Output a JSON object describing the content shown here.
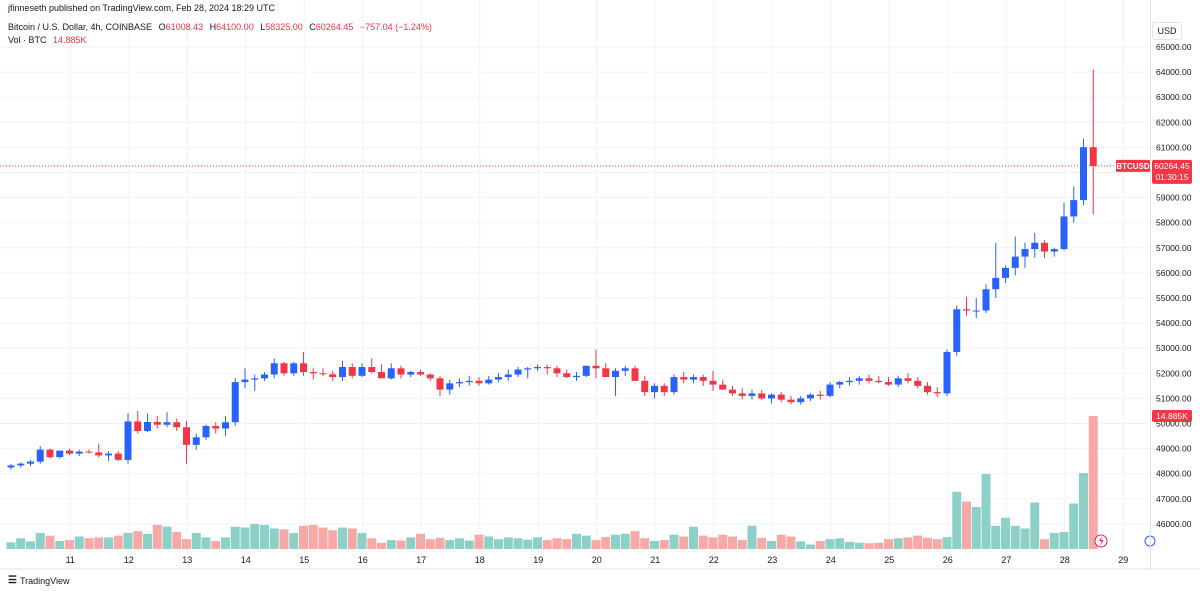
{
  "header": {
    "author": "jfinneseth published on TradingView.com, Feb 28, 2024 18:29 UTC",
    "symbol": "Bitcoin / U.S. Dollar, 4h, COINBASE",
    "open_label": "O",
    "open": "61008.43",
    "high_label": "H",
    "high": "64100.00",
    "low_label": "L",
    "low": "58325.00",
    "close_label": "C",
    "close": "60264.45",
    "change": "−757.04 (−1.24%)",
    "vol_label": "Vol · BTC",
    "vol_value": "14.885K"
  },
  "currency": "USD",
  "branding": "TradingView",
  "colors": {
    "up": "#2962ff",
    "down": "#f23645",
    "vol_up": "#8dd0c8",
    "vol_down": "#f7a9a7",
    "grid": "#f0f3fa"
  },
  "chart_data": {
    "type": "candlestick",
    "title": "Bitcoin / U.S. Dollar, 4h, COINBASE",
    "ylim": [
      45500,
      65500
    ],
    "y_ticks": [
      46000,
      47000,
      48000,
      49000,
      50000,
      51000,
      52000,
      53000,
      54000,
      55000,
      56000,
      57000,
      58000,
      59000,
      60000,
      61000,
      62000,
      63000,
      64000,
      65000
    ],
    "y_tick_labels": [
      "46000.00",
      "47000.00",
      "48000.00",
      "49000.00",
      "50000.00",
      "51000.00",
      "52000.00",
      "53000.00",
      "54000.00",
      "55000.00",
      "56000.00",
      "57000.00",
      "58000.00",
      "59000.00",
      "60000.00",
      "61000.00",
      "62000.00",
      "63000.00",
      "64000.00",
      "65000.00"
    ],
    "x_tick_labels": [
      {
        "label": "11",
        "index": 3
      },
      {
        "label": "12",
        "index": 9
      },
      {
        "label": "13",
        "index": 15
      },
      {
        "label": "14",
        "index": 21
      },
      {
        "label": "15",
        "index": 27
      },
      {
        "label": "16",
        "index": 33
      },
      {
        "label": "17",
        "index": 39
      },
      {
        "label": "18",
        "index": 45
      },
      {
        "label": "19",
        "index": 51
      },
      {
        "label": "20",
        "index": 57
      },
      {
        "label": "21",
        "index": 63
      },
      {
        "label": "22",
        "index": 69
      },
      {
        "label": "23",
        "index": 75
      },
      {
        "label": "24",
        "index": 81
      },
      {
        "label": "25",
        "index": 87
      },
      {
        "label": "26",
        "index": 93
      },
      {
        "label": "27",
        "index": 99
      },
      {
        "label": "28",
        "index": 105
      },
      {
        "label": "29",
        "index": 111
      }
    ],
    "last_price": {
      "label": "BTCUSD",
      "value": "60264.45",
      "countdown": "01:30:15",
      "price": 60264.45
    },
    "last_volume": {
      "value": "14.885K"
    },
    "vol_max": 14885,
    "candles": [
      [
        48250,
        48380,
        48150,
        48330
      ],
      [
        48330,
        48450,
        48250,
        48400
      ],
      [
        48400,
        48540,
        48300,
        48480
      ],
      [
        48480,
        49100,
        48400,
        48960
      ],
      [
        48960,
        49000,
        48600,
        48660
      ],
      [
        48660,
        48900,
        48600,
        48920
      ],
      [
        48920,
        49000,
        48750,
        48800
      ],
      [
        48800,
        48950,
        48700,
        48880
      ],
      [
        48880,
        48970,
        48800,
        48850
      ],
      [
        48850,
        49200,
        48650,
        48730
      ],
      [
        48730,
        48900,
        48500,
        48800
      ],
      [
        48800,
        48900,
        48500,
        48550
      ],
      [
        48550,
        50400,
        48400,
        50080
      ],
      [
        50080,
        50500,
        49600,
        49700
      ],
      [
        49700,
        50400,
        49650,
        50060
      ],
      [
        50060,
        50300,
        49800,
        49950
      ],
      [
        49950,
        50450,
        49850,
        50050
      ],
      [
        50050,
        50200,
        49700,
        49850
      ],
      [
        49850,
        50100,
        48400,
        49150
      ],
      [
        49150,
        49600,
        48950,
        49450
      ],
      [
        49450,
        49950,
        49350,
        49900
      ],
      [
        49900,
        50050,
        49600,
        49800
      ],
      [
        49800,
        50300,
        49500,
        50050
      ],
      [
        50050,
        51800,
        49900,
        51650
      ],
      [
        51650,
        52200,
        51400,
        51750
      ],
      [
        51750,
        51950,
        51300,
        51800
      ],
      [
        51800,
        52050,
        51700,
        51950
      ],
      [
        51950,
        52600,
        51800,
        52400
      ],
      [
        52400,
        52450,
        51900,
        52000
      ],
      [
        52000,
        52450,
        51900,
        52400
      ],
      [
        52400,
        52850,
        51900,
        52050
      ],
      [
        52050,
        52200,
        51750,
        52000
      ],
      [
        52000,
        52200,
        51900,
        51960
      ],
      [
        51960,
        52100,
        51700,
        51850
      ],
      [
        51850,
        52500,
        51700,
        52250
      ],
      [
        52250,
        52400,
        51800,
        51900
      ],
      [
        51900,
        52400,
        51850,
        52250
      ],
      [
        52250,
        52600,
        52000,
        52050
      ],
      [
        52050,
        52350,
        51900,
        51800
      ],
      [
        51800,
        52400,
        51750,
        52200
      ],
      [
        52200,
        52300,
        51800,
        51950
      ],
      [
        51950,
        52100,
        51850,
        52050
      ],
      [
        52050,
        52150,
        51900,
        51950
      ],
      [
        51950,
        52000,
        51700,
        51800
      ],
      [
        51800,
        51900,
        51100,
        51350
      ],
      [
        51350,
        51750,
        51150,
        51600
      ],
      [
        51600,
        51800,
        51450,
        51650
      ],
      [
        51650,
        51900,
        51500,
        51700
      ],
      [
        51700,
        51850,
        51500,
        51600
      ],
      [
        51600,
        51900,
        51550,
        51750
      ],
      [
        51750,
        52000,
        51650,
        51850
      ],
      [
        51850,
        52150,
        51700,
        51950
      ],
      [
        51950,
        52250,
        51850,
        52150
      ],
      [
        52150,
        52250,
        51800,
        52200
      ],
      [
        52200,
        52350,
        52100,
        52250
      ],
      [
        52250,
        52350,
        51950,
        52200
      ],
      [
        52200,
        52300,
        51850,
        52000
      ],
      [
        52000,
        52150,
        51800,
        51850
      ],
      [
        51850,
        52050,
        51700,
        51900
      ],
      [
        51900,
        52300,
        51850,
        52300
      ],
      [
        52300,
        52950,
        51800,
        52200
      ],
      [
        52200,
        52400,
        51850,
        51850
      ],
      [
        51850,
        52200,
        51100,
        52100
      ],
      [
        52100,
        52300,
        51900,
        52200
      ],
      [
        52200,
        52300,
        51700,
        51700
      ],
      [
        51700,
        51900,
        51100,
        51250
      ],
      [
        51250,
        51600,
        51000,
        51500
      ],
      [
        51500,
        51600,
        51100,
        51250
      ],
      [
        51250,
        51950,
        51150,
        51850
      ],
      [
        51850,
        52050,
        51600,
        51750
      ],
      [
        51750,
        51950,
        51600,
        51850
      ],
      [
        51850,
        51950,
        51500,
        51700
      ],
      [
        51700,
        52100,
        51300,
        51550
      ],
      [
        51550,
        51750,
        51350,
        51350
      ],
      [
        51350,
        51500,
        51100,
        51200
      ],
      [
        51200,
        51400,
        50950,
        51100
      ],
      [
        51100,
        51350,
        50950,
        51200
      ],
      [
        51200,
        51350,
        50950,
        51000
      ],
      [
        51000,
        51200,
        50800,
        51150
      ],
      [
        51150,
        51250,
        50850,
        50950
      ],
      [
        50950,
        51100,
        50750,
        50850
      ],
      [
        50850,
        51100,
        50750,
        51000
      ],
      [
        51000,
        51200,
        50900,
        51150
      ],
      [
        51150,
        51300,
        50950,
        51100
      ],
      [
        51100,
        51650,
        51050,
        51550
      ],
      [
        51550,
        51700,
        51400,
        51650
      ],
      [
        51650,
        51850,
        51500,
        51700
      ],
      [
        51700,
        51900,
        51550,
        51800
      ],
      [
        51800,
        51950,
        51600,
        51700
      ],
      [
        51700,
        51900,
        51600,
        51650
      ],
      [
        51650,
        51850,
        51500,
        51550
      ],
      [
        51550,
        51900,
        51450,
        51800
      ],
      [
        51800,
        52000,
        51600,
        51700
      ],
      [
        51700,
        51850,
        51400,
        51500
      ],
      [
        51500,
        51650,
        51150,
        51250
      ],
      [
        51250,
        51450,
        51050,
        51200
      ],
      [
        51200,
        52950,
        51100,
        52850
      ],
      [
        52850,
        54700,
        52700,
        54550
      ],
      [
        54550,
        55050,
        54300,
        54500
      ],
      [
        54500,
        55000,
        54200,
        54500
      ],
      [
        54500,
        55550,
        54400,
        55350
      ],
      [
        55350,
        57200,
        55000,
        55800
      ],
      [
        55800,
        56300,
        55600,
        56200
      ],
      [
        56200,
        57450,
        55900,
        56650
      ],
      [
        56650,
        57200,
        56200,
        56950
      ],
      [
        56950,
        57600,
        56600,
        57200
      ],
      [
        57200,
        57300,
        56600,
        56850
      ],
      [
        56850,
        57000,
        56650,
        56950
      ],
      [
        56950,
        58800,
        56900,
        58250
      ],
      [
        58250,
        59450,
        58000,
        58900
      ],
      [
        58900,
        61350,
        58700,
        61008.43
      ],
      [
        61008.43,
        64100,
        58325,
        60264.45
      ]
    ],
    "volumes": [
      750,
      1200,
      850,
      1800,
      1500,
      900,
      1000,
      1400,
      1200,
      1300,
      1300,
      1500,
      1800,
      2000,
      1700,
      2700,
      2500,
      1900,
      1100,
      1800,
      1300,
      900,
      1300,
      2500,
      2400,
      2800,
      2700,
      2300,
      2200,
      1800,
      2600,
      2700,
      2400,
      2100,
      2400,
      2300,
      1800,
      1200,
      700,
      1000,
      950,
      1300,
      1700,
      1100,
      1250,
      1000,
      1200,
      950,
      1600,
      1400,
      1100,
      1300,
      1200,
      1050,
      1300,
      1000,
      1200,
      1100,
      1700,
      1500,
      1000,
      1350,
      1600,
      1700,
      2000,
      1200,
      900,
      1000,
      1600,
      1400,
      2500,
      1500,
      1300,
      1600,
      1400,
      1000,
      2600,
      1250,
      900,
      1600,
      1400,
      850,
      500,
      900,
      1100,
      1200,
      800,
      700,
      650,
      700,
      1100,
      1200,
      1300,
      1500,
      1250,
      1100,
      1350,
      6400,
      5300,
      4700,
      8400,
      2600,
      3500,
      2600,
      2300,
      5200,
      1100,
      1800,
      1900,
      5100,
      8500,
      14885
    ]
  }
}
